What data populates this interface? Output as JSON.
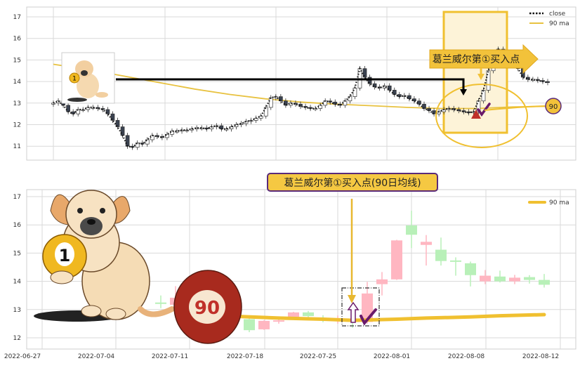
{
  "colors": {
    "accent_yellow": "#f0c030",
    "highlight_fill": "#fdf3d8",
    "candle_down_dark": "#3a4250",
    "candle_up_pink": "#ffb6c1",
    "candle_down_green": "#b8f0b8",
    "title_purple": "#5a2a7a",
    "marker_red": "#c0302a",
    "check_purple": "#6a1a6a"
  },
  "chart_data": [
    {
      "type": "line",
      "panel": "top",
      "legend": [
        "close",
        "90 ma"
      ],
      "legend_placement": "top-right",
      "grid": true,
      "ylim": [
        10.4,
        17.5
      ],
      "yticks": [
        11,
        12,
        13,
        14,
        15,
        16,
        17
      ],
      "series": [
        {
          "name": "close",
          "style": "dotted-black-with-candles",
          "values": [
            13.0,
            13.1,
            12.9,
            12.6,
            12.5,
            12.7,
            12.7,
            12.8,
            12.8,
            12.75,
            12.7,
            12.5,
            12.2,
            11.9,
            11.5,
            11.0,
            10.95,
            11.15,
            11.1,
            11.3,
            11.5,
            11.45,
            11.4,
            11.55,
            11.7,
            11.7,
            11.75,
            11.75,
            11.8,
            11.85,
            11.85,
            11.8,
            11.9,
            11.95,
            11.8,
            11.8,
            11.9,
            12.0,
            12.05,
            12.15,
            12.2,
            12.3,
            12.4,
            12.8,
            13.25,
            13.3,
            13.1,
            12.9,
            13.0,
            12.95,
            12.85,
            12.8,
            12.75,
            12.75,
            12.9,
            13.1,
            13.05,
            12.95,
            12.9,
            13.1,
            13.3,
            13.7,
            14.6,
            14.2,
            13.9,
            13.75,
            13.7,
            13.8,
            13.6,
            13.4,
            13.3,
            13.35,
            13.2,
            13.1,
            12.95,
            12.75,
            12.65,
            12.5,
            12.6,
            12.7,
            12.75,
            12.7,
            12.65,
            12.6,
            12.55,
            12.6,
            13.1,
            13.6,
            14.5,
            15.2,
            15.5,
            15.3,
            15.2,
            14.8,
            14.6,
            14.2,
            14.1,
            14.1,
            14.05,
            14.0,
            13.95
          ]
        },
        {
          "name": "90 ma",
          "values": [
            14.8,
            14.55,
            14.25,
            13.95,
            13.65,
            13.4,
            13.2,
            13.05,
            12.95,
            12.88,
            12.8,
            12.75,
            12.75,
            12.82,
            12.85
          ]
        }
      ],
      "annotations": {
        "buy_label": "葛兰威尔第①买入点",
        "ma_badge": "90",
        "resistance_level": 14.1
      }
    },
    {
      "type": "candlestick",
      "panel": "bottom",
      "title": "葛兰威尔第①买入点(90日均线)",
      "legend": [
        "90 ma"
      ],
      "legend_placement": "top-right",
      "grid": true,
      "ylim": [
        11.6,
        17.1
      ],
      "yticks": [
        12,
        13,
        14,
        15,
        16,
        17
      ],
      "xtick_labels": [
        "2022-06-27",
        "2022-07-04",
        "2022-07-11",
        "2022-07-18",
        "2022-07-25",
        "2022-08-01",
        "2022-08-08",
        "2022-08-12"
      ],
      "candles": [
        {
          "date": "2022-07-07",
          "open": 13.25,
          "close": 13.2,
          "high": 13.5,
          "low": 13.05
        },
        {
          "date": "2022-07-08",
          "open": 13.17,
          "close": 13.42,
          "high": 13.83,
          "low": 13.15
        },
        {
          "date": "2022-07-15",
          "open": 12.66,
          "close": 12.27,
          "high": 12.8,
          "low": 12.2
        },
        {
          "date": "2022-07-18",
          "open": 12.3,
          "close": 12.6,
          "high": 12.62,
          "low": 12.28
        },
        {
          "date": "2022-07-19",
          "open": 12.6,
          "close": 12.62,
          "high": 12.76,
          "low": 12.5
        },
        {
          "date": "2022-07-20",
          "open": 12.72,
          "close": 12.9,
          "high": 12.92,
          "low": 12.68
        },
        {
          "date": "2022-07-21",
          "open": 12.9,
          "close": 12.77,
          "high": 12.95,
          "low": 12.73
        },
        {
          "date": "2022-07-22",
          "open": 12.68,
          "close": 12.66,
          "high": 12.8,
          "low": 12.55
        },
        {
          "date": "2022-07-25",
          "open": 12.64,
          "close": 12.66,
          "high": 12.79,
          "low": 12.5
        },
        {
          "date": "2022-07-26",
          "open": 12.62,
          "close": 12.6,
          "high": 12.65,
          "low": 12.35
        },
        {
          "date": "2022-07-27",
          "open": 12.56,
          "close": 13.57,
          "high": 13.98,
          "low": 12.5
        },
        {
          "date": "2022-07-28",
          "open": 13.9,
          "close": 14.07,
          "high": 14.33,
          "low": 13.5
        },
        {
          "date": "2022-07-29",
          "open": 14.07,
          "close": 15.45,
          "high": 15.47,
          "low": 14.05
        },
        {
          "date": "2022-08-01",
          "open": 15.98,
          "close": 15.65,
          "high": 16.5,
          "low": 15.18
        },
        {
          "date": "2022-08-02",
          "open": 15.29,
          "close": 15.4,
          "high": 15.64,
          "low": 14.56
        },
        {
          "date": "2022-08-03",
          "open": 15.12,
          "close": 14.72,
          "high": 15.55,
          "low": 14.56
        },
        {
          "date": "2022-08-04",
          "open": 14.74,
          "close": 14.72,
          "high": 14.85,
          "low": 14.2
        },
        {
          "date": "2022-08-05",
          "open": 14.64,
          "close": 14.22,
          "high": 14.7,
          "low": 13.82
        },
        {
          "date": "2022-08-08",
          "open": 14.0,
          "close": 14.2,
          "high": 14.4,
          "low": 13.9
        },
        {
          "date": "2022-08-09",
          "open": 14.17,
          "close": 14.0,
          "high": 14.38,
          "low": 13.96
        },
        {
          "date": "2022-08-10",
          "open": 14.0,
          "close": 14.13,
          "high": 14.23,
          "low": 13.9
        },
        {
          "date": "2022-08-11",
          "open": 14.15,
          "close": 14.05,
          "high": 14.22,
          "low": 13.92
        },
        {
          "date": "2022-08-12",
          "open": 14.05,
          "close": 13.88,
          "high": 14.26,
          "low": 13.78
        }
      ],
      "ma90": [
        {
          "date": "2022-07-14",
          "value": 12.76
        },
        {
          "date": "2022-07-19",
          "value": 12.7
        },
        {
          "date": "2022-07-22",
          "value": 12.66
        },
        {
          "date": "2022-07-26",
          "value": 12.62
        },
        {
          "date": "2022-07-29",
          "value": 12.66
        },
        {
          "date": "2022-08-02",
          "value": 12.7
        },
        {
          "date": "2022-08-05",
          "value": 12.74
        },
        {
          "date": "2022-08-09",
          "value": 12.78
        },
        {
          "date": "2022-08-12",
          "value": 12.82
        }
      ],
      "annotations": {
        "ball_1": "1",
        "ball_90": "90",
        "signal_date": "2022-07-26"
      }
    }
  ]
}
